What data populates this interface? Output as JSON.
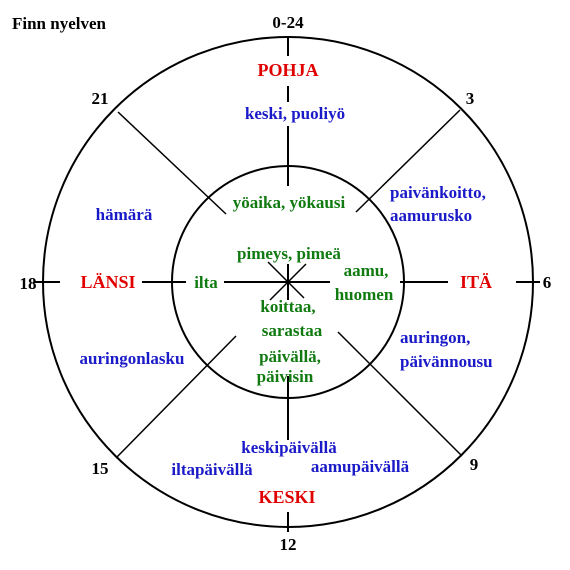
{
  "title": "Finn nyelven",
  "colors": {
    "line": "#000000",
    "cardinal": "#e00000",
    "outer_ring": "#1a1ac8",
    "inner_circle": "#117a11",
    "hours": "#000000"
  },
  "hours": {
    "h0_24": "0-24",
    "h3": "3",
    "h6": "6",
    "h9": "9",
    "h12": "12",
    "h15": "15",
    "h18": "18",
    "h21": "21"
  },
  "cardinals": {
    "north": "POHJA",
    "east": "ITÄ",
    "south": "KESKI",
    "west": "LÄNSI"
  },
  "outer_ring": {
    "north": "keski, puoliyö",
    "northeast_1": "paivänkoitto,",
    "northeast_2": "aamurusko",
    "northwest": "hämärä",
    "southeast_1": "auringon,",
    "southeast_2": "päivännousu",
    "southwest": "auringonlasku",
    "south": "keskipäivällä",
    "south_left": "iltapäivällä",
    "south_right": "aamupäivällä"
  },
  "inner_circle": {
    "top": "yöaika, yökausi",
    "center": "pimeys, pimeä",
    "west": "ilta",
    "east_1": "aamu,",
    "east_2": "huomen",
    "south_1": "koittaa,",
    "south_2": "sarastaa",
    "bottom_1": "päivällä,",
    "bottom_2": "päivisin"
  }
}
